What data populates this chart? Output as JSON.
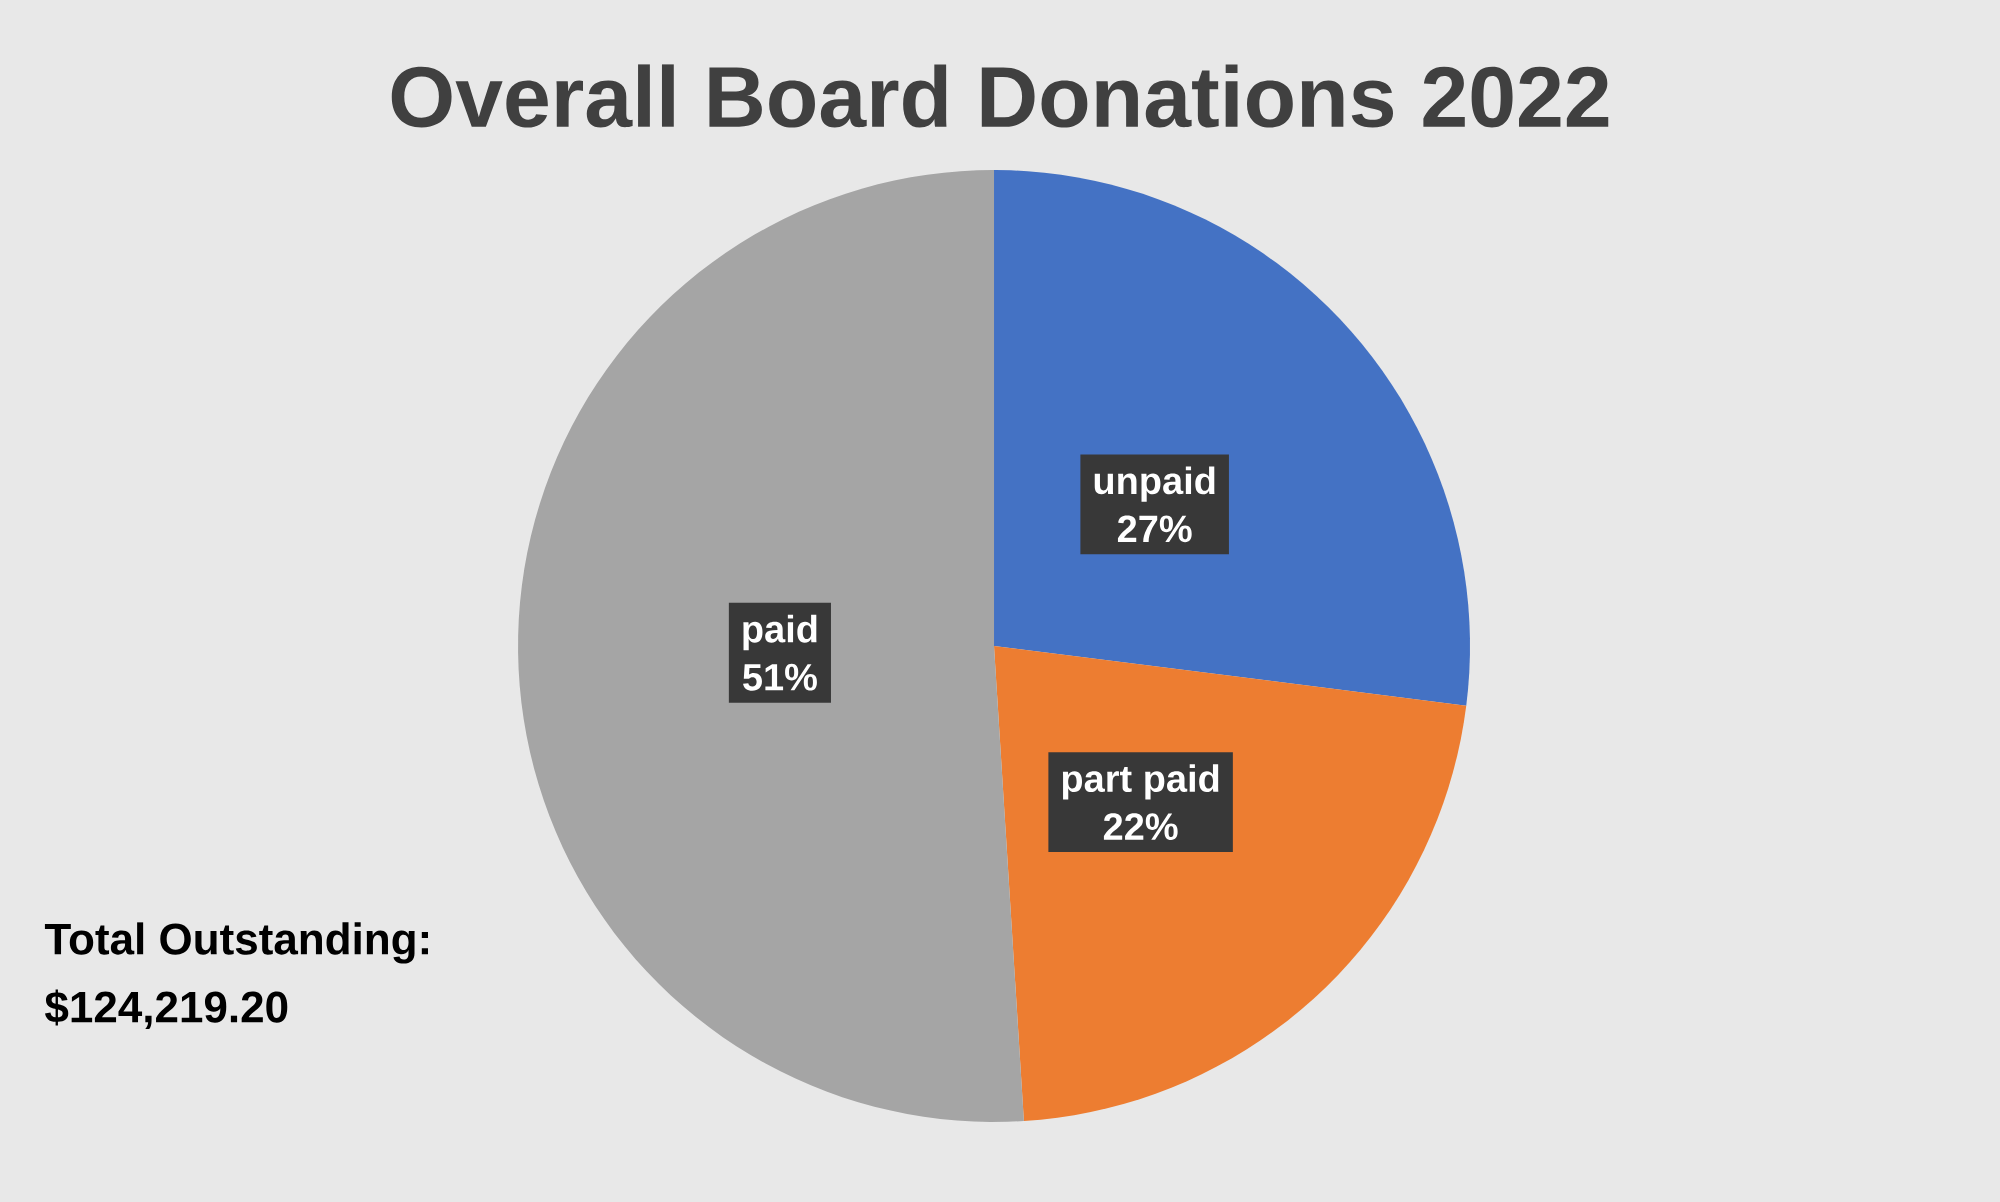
{
  "chart_data": {
    "type": "pie",
    "title": "Overall Board Donations 2022",
    "categories": [
      "unpaid",
      "part paid",
      "paid"
    ],
    "values": [
      27,
      22,
      51
    ],
    "value_labels": [
      "27%",
      "22%",
      "51%"
    ],
    "colors": [
      "#4472c4",
      "#ed7d31",
      "#a5a5a5"
    ],
    "annotations": [
      "Total Outstanding:\n$124,219.20"
    ]
  }
}
